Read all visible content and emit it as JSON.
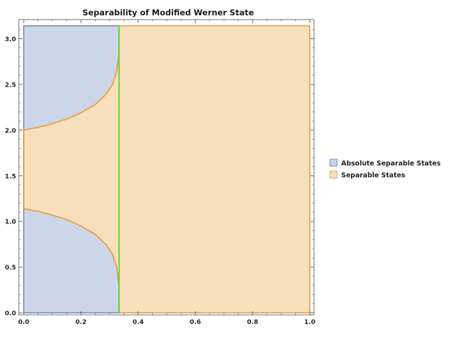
{
  "chart_data": {
    "type": "area",
    "title": "Separability of Modified Werner State",
    "xlabel": "",
    "ylabel": "",
    "xlim": [
      0,
      1
    ],
    "ylim": [
      0,
      3.14159
    ],
    "x_ticks": [
      0.0,
      0.2,
      0.4,
      0.6,
      0.8,
      1.0
    ],
    "x_tick_labels": [
      "0.0",
      "0.2",
      "0.4",
      "0.6",
      "0.8",
      "1.0"
    ],
    "y_ticks": [
      0.0,
      0.5,
      1.0,
      1.5,
      2.0,
      2.5,
      3.0
    ],
    "y_tick_labels": [
      "0.0",
      "0.5",
      "1.0",
      "1.5",
      "2.0",
      "2.5",
      "3.0"
    ],
    "grid": false,
    "legend_placement": "right",
    "threshold_x": 0.3333,
    "separable_region": {
      "x_range": [
        0,
        1
      ],
      "y_range": [
        0,
        3.14159
      ]
    },
    "series": [
      {
        "name": "Absolute Separable States",
        "fill_color": "#cdd6e8",
        "edge_color": "#6a8fc0",
        "regions": [
          {
            "part": "upper",
            "boundary_points": [
              [
                0.0,
                2.0
              ],
              [
                0.05,
                2.03
              ],
              [
                0.1,
                2.07
              ],
              [
                0.15,
                2.12
              ],
              [
                0.2,
                2.19
              ],
              [
                0.25,
                2.28
              ],
              [
                0.29,
                2.4
              ],
              [
                0.31,
                2.5
              ],
              [
                0.325,
                2.64
              ],
              [
                0.333,
                2.85
              ],
              [
                0.3333,
                3.14159
              ]
            ]
          },
          {
            "part": "lower",
            "boundary_points": [
              [
                0.0,
                1.14
              ],
              [
                0.05,
                1.11
              ],
              [
                0.1,
                1.07
              ],
              [
                0.15,
                1.02
              ],
              [
                0.2,
                0.95
              ],
              [
                0.25,
                0.86
              ],
              [
                0.29,
                0.74
              ],
              [
                0.31,
                0.64
              ],
              [
                0.325,
                0.5
              ],
              [
                0.333,
                0.29
              ],
              [
                0.3333,
                0.0
              ]
            ]
          }
        ]
      },
      {
        "name": "Separable States",
        "fill_color": "#f7dfbc",
        "edge_color": "#e2a54a"
      }
    ],
    "colors": {
      "threshold_line": "#5ed62b",
      "frame": "#6e6e6e",
      "outline_orange": "#dfa04a"
    }
  }
}
